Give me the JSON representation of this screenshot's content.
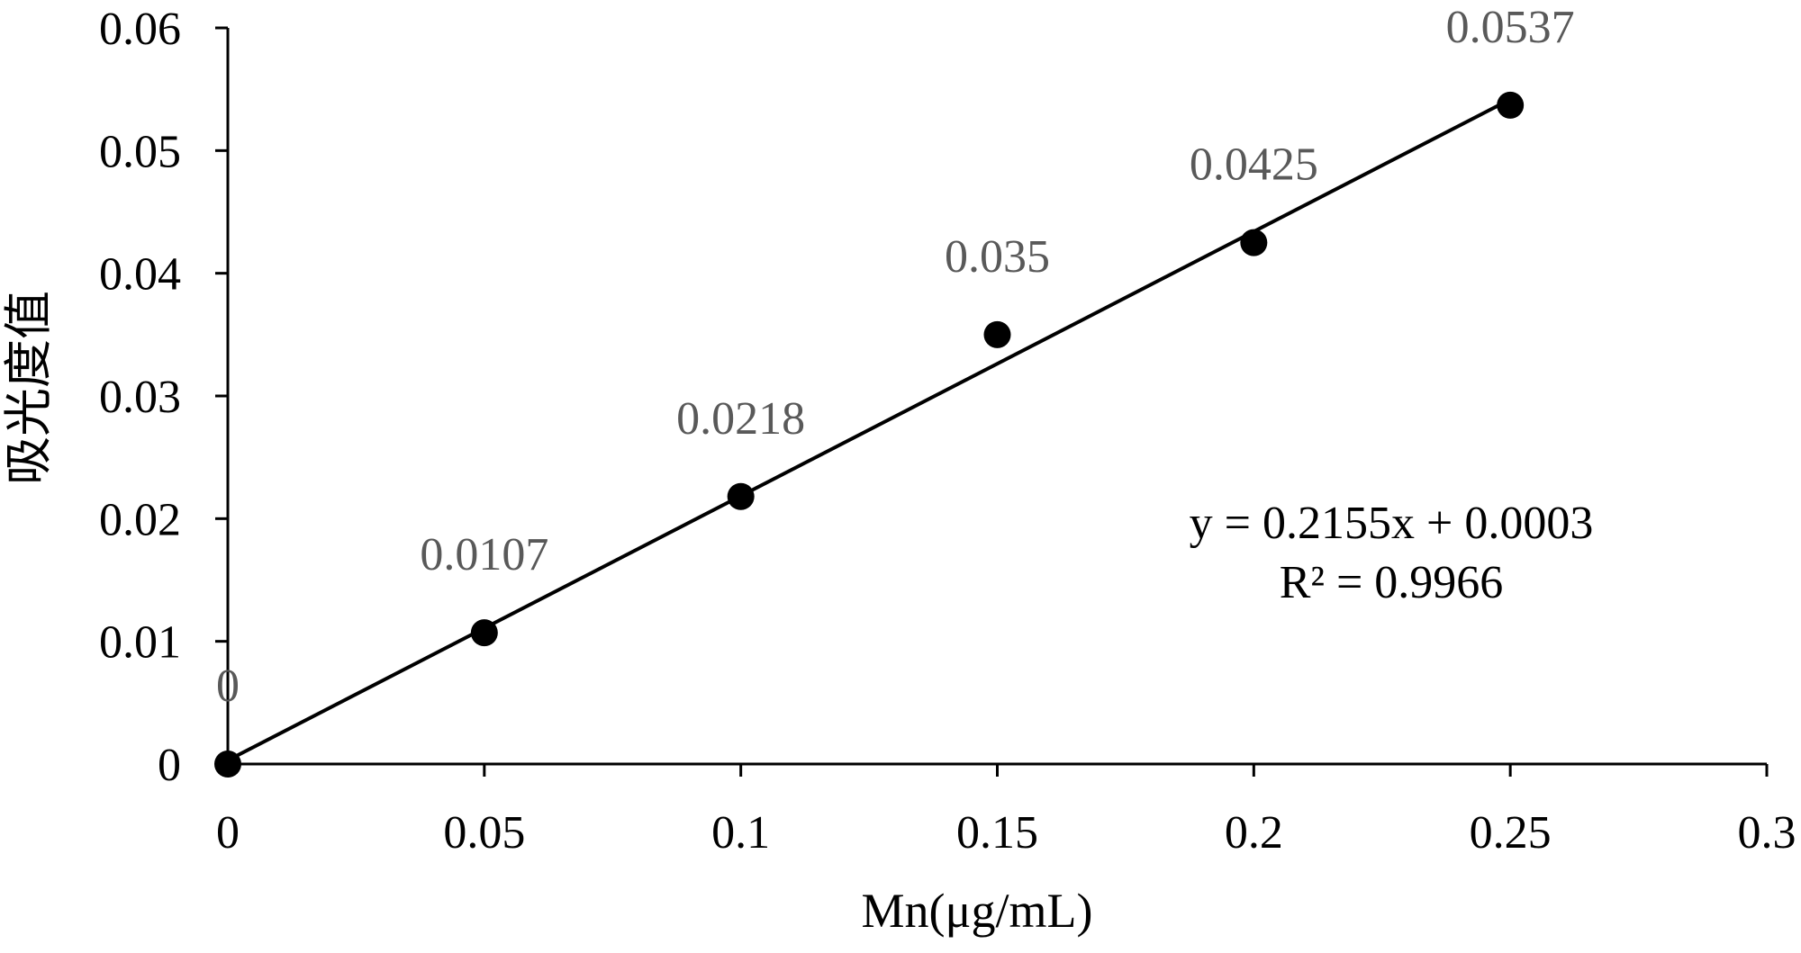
{
  "chart_data": {
    "type": "scatter",
    "title": "",
    "xlabel": "Mn(μg/mL)",
    "ylabel": "吸光度值",
    "xlim": [
      0,
      0.3
    ],
    "ylim": [
      0,
      0.06
    ],
    "x_ticks": [
      0,
      0.05,
      0.1,
      0.15,
      0.2,
      0.25,
      0.3
    ],
    "x_tick_labels": [
      "0",
      "0.05",
      "0.1",
      "0.15",
      "0.2",
      "0.25",
      "0.3"
    ],
    "y_ticks": [
      0,
      0.01,
      0.02,
      0.03,
      0.04,
      0.05,
      0.06
    ],
    "y_tick_labels": [
      "0",
      "0.01",
      "0.02",
      "0.03",
      "0.04",
      "0.05",
      "0.06"
    ],
    "grid": false,
    "legend": "none",
    "series": [
      {
        "x": [
          0,
          0.05,
          0.1,
          0.15,
          0.2,
          0.25
        ],
        "y": [
          0,
          0.0107,
          0.0218,
          0.035,
          0.0425,
          0.0537
        ],
        "data_labels": [
          "0",
          "0.0107",
          "0.0218",
          "0.035",
          "0.0425",
          "0.0537"
        ],
        "marker_color": "#000000"
      }
    ],
    "trendline": {
      "type": "linear",
      "slope": 0.2155,
      "intercept": 0.0003,
      "x_range": [
        0,
        0.25
      ],
      "equation": "y = 0.2155x + 0.0003",
      "r_squared": "R² = 0.9966",
      "color": "#000000"
    },
    "colors": {
      "axis": "#000000",
      "data_label": "#595959"
    }
  }
}
